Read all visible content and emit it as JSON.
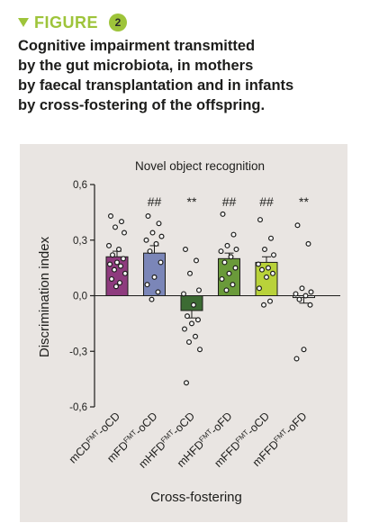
{
  "figure_label": "FIGURE",
  "figure_number": "2",
  "caption_lines": [
    "Cognitive impairment transmitted",
    "by the gut microbiota, in mothers",
    "by faecal transplantation and in infants",
    "by cross-fostering of the offspring."
  ],
  "colors": {
    "accent": "#9ec43a",
    "panel_bg": "#e9e5e2",
    "text": "#1d1d1b"
  },
  "chart_data": {
    "type": "bar",
    "title": "Novel object recognition",
    "xlabel": "Cross-fostering",
    "ylabel": "Discrimination index",
    "ylim": [
      -0.6,
      0.6
    ],
    "yticks": [
      {
        "value": 0.6,
        "label": "0,6"
      },
      {
        "value": 0.3,
        "label": "0,3"
      },
      {
        "value": 0.0,
        "label": "0,0"
      },
      {
        "value": -0.3,
        "label": "-0,3"
      },
      {
        "value": -0.6,
        "label": "-0,6"
      }
    ],
    "categories": [
      {
        "label_main": "mCD",
        "label_sup": "FMT",
        "label_tail": "-oCD"
      },
      {
        "label_main": "mFD",
        "label_sup": "FMT",
        "label_tail": "-oCD"
      },
      {
        "label_main": "mHFD",
        "label_sup": "FMT",
        "label_tail": "-oCD"
      },
      {
        "label_main": "mHFD",
        "label_sup": "FMT",
        "label_tail": "-oFD"
      },
      {
        "label_main": "mFFD",
        "label_sup": "FMT",
        "label_tail": "-oCD"
      },
      {
        "label_main": "mFFD",
        "label_sup": "FMT",
        "label_tail": "-oFD"
      }
    ],
    "values": [
      0.21,
      0.23,
      -0.08,
      0.2,
      0.18,
      -0.01
    ],
    "errors": [
      0.03,
      0.04,
      0.04,
      0.03,
      0.03,
      0.03
    ],
    "bar_colors": [
      "#8e3b7e",
      "#7b86b8",
      "#3c6b33",
      "#6a9a3a",
      "#b9d23a",
      "#f2f2f2"
    ],
    "annotations": [
      "",
      "##",
      "**",
      "##",
      "##",
      "**"
    ],
    "points": [
      [
        0.43,
        0.4,
        0.37,
        0.34,
        0.27,
        0.25,
        0.22,
        0.2,
        0.18,
        0.17,
        0.16,
        0.14,
        0.12,
        0.09,
        0.07,
        0.05
      ],
      [
        0.43,
        0.39,
        0.34,
        0.32,
        0.3,
        0.28,
        0.24,
        0.18,
        0.1,
        0.06,
        0.02,
        -0.02
      ],
      [
        0.25,
        0.19,
        0.12,
        0.03,
        0.01,
        -0.05,
        -0.11,
        -0.13,
        -0.15,
        -0.18,
        -0.22,
        -0.25,
        -0.29,
        -0.47
      ],
      [
        0.44,
        0.33,
        0.27,
        0.25,
        0.24,
        0.21,
        0.18,
        0.15,
        0.12,
        0.09,
        0.06,
        0.03
      ],
      [
        0.41,
        0.31,
        0.25,
        0.22,
        0.17,
        0.15,
        0.14,
        0.12,
        0.1,
        0.04,
        -0.03,
        -0.05
      ],
      [
        0.38,
        0.28,
        0.04,
        0.02,
        0.01,
        0.0,
        -0.02,
        -0.05,
        -0.29,
        -0.34
      ]
    ],
    "grid": false,
    "legend": "none"
  }
}
